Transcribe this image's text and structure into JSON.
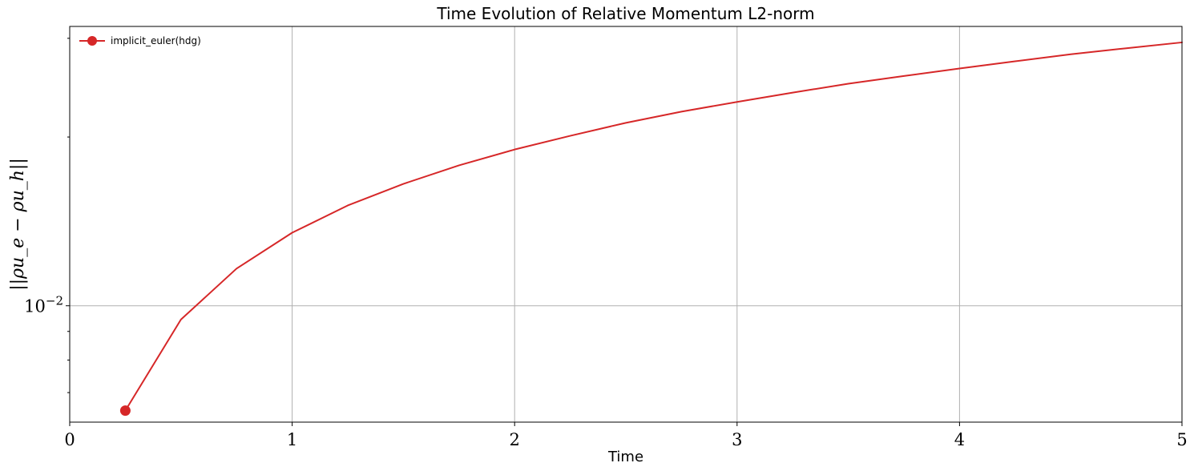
{
  "colors": {
    "series": "#d62728",
    "grid": "#b0b0b0",
    "axis": "#000000",
    "background": "#ffffff"
  },
  "chart_data": {
    "type": "line",
    "title": "Time Evolution of Relative Momentum L2-norm",
    "xlabel": "Time",
    "ylabel": "||ρu_e − ρu_h||",
    "xlim": [
      0,
      5
    ],
    "ylim": [
      0.0062,
      0.0315
    ],
    "yscale": "log",
    "grid": true,
    "legend_position": "top-left",
    "x_ticks": [
      0,
      1,
      2,
      3,
      4,
      5
    ],
    "x_tick_labels": [
      "0",
      "1",
      "2",
      "3",
      "4",
      "5"
    ],
    "y_major_ticks": [
      0.01
    ],
    "y_major_tick_labels": [
      "10^{-2}"
    ],
    "y_minor_ticks": [
      0.007,
      0.008,
      0.009,
      0.02,
      0.03
    ],
    "series": [
      {
        "name": "implicit_euler(hdg)",
        "color": "#d62728",
        "marker": "circle",
        "marker_on_first_point_only": true,
        "x": [
          0.25,
          0.5,
          0.75,
          1.0,
          1.25,
          1.5,
          1.75,
          2.0,
          2.25,
          2.5,
          2.75,
          3.0,
          3.25,
          3.5,
          3.75,
          4.0,
          4.25,
          4.5,
          4.75,
          5.0
        ],
        "y": [
          0.0065,
          0.00945,
          0.01165,
          0.0135,
          0.0151,
          0.0165,
          0.0178,
          0.019,
          0.0201,
          0.0212,
          0.0222,
          0.0231,
          0.024,
          0.0249,
          0.0257,
          0.0265,
          0.0273,
          0.0281,
          0.0288,
          0.0295
        ]
      }
    ]
  }
}
